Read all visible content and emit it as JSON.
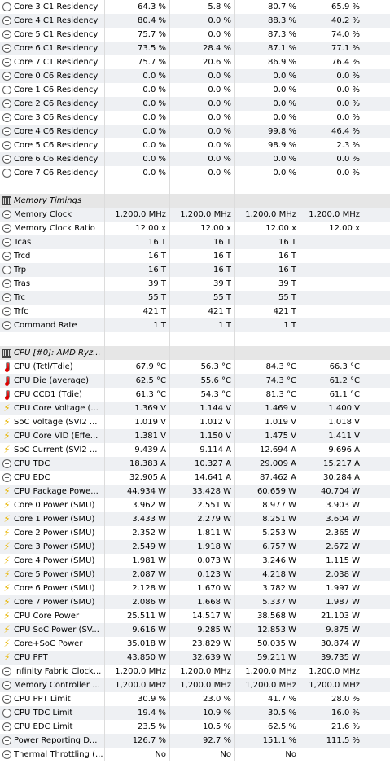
{
  "rows": [
    {
      "type": "data",
      "icon": "clock",
      "label": "Core 3 C1 Residency",
      "v": [
        "64.3 %",
        "5.8 %",
        "80.7 %",
        "65.9 %"
      ]
    },
    {
      "type": "data",
      "icon": "clock",
      "label": "Core 4 C1 Residency",
      "v": [
        "80.4 %",
        "0.0 %",
        "88.3 %",
        "40.2 %"
      ]
    },
    {
      "type": "data",
      "icon": "clock",
      "label": "Core 5 C1 Residency",
      "v": [
        "75.7 %",
        "0.0 %",
        "87.3 %",
        "74.0 %"
      ]
    },
    {
      "type": "data",
      "icon": "clock",
      "label": "Core 6 C1 Residency",
      "v": [
        "73.5 %",
        "28.4 %",
        "87.1 %",
        "77.1 %"
      ]
    },
    {
      "type": "data",
      "icon": "clock",
      "label": "Core 7 C1 Residency",
      "v": [
        "75.7 %",
        "20.6 %",
        "86.9 %",
        "76.4 %"
      ]
    },
    {
      "type": "data",
      "icon": "clock",
      "label": "Core 0 C6 Residency",
      "v": [
        "0.0 %",
        "0.0 %",
        "0.0 %",
        "0.0 %"
      ]
    },
    {
      "type": "data",
      "icon": "clock",
      "label": "Core 1 C6 Residency",
      "v": [
        "0.0 %",
        "0.0 %",
        "0.0 %",
        "0.0 %"
      ]
    },
    {
      "type": "data",
      "icon": "clock",
      "label": "Core 2 C6 Residency",
      "v": [
        "0.0 %",
        "0.0 %",
        "0.0 %",
        "0.0 %"
      ]
    },
    {
      "type": "data",
      "icon": "clock",
      "label": "Core 3 C6 Residency",
      "v": [
        "0.0 %",
        "0.0 %",
        "0.0 %",
        "0.0 %"
      ]
    },
    {
      "type": "data",
      "icon": "clock",
      "label": "Core 4 C6 Residency",
      "v": [
        "0.0 %",
        "0.0 %",
        "99.8 %",
        "46.4 %"
      ]
    },
    {
      "type": "data",
      "icon": "clock",
      "label": "Core 5 C6 Residency",
      "v": [
        "0.0 %",
        "0.0 %",
        "98.9 %",
        "2.3 %"
      ]
    },
    {
      "type": "data",
      "icon": "clock",
      "label": "Core 6 C6 Residency",
      "v": [
        "0.0 %",
        "0.0 %",
        "0.0 %",
        "0.0 %"
      ]
    },
    {
      "type": "data",
      "icon": "clock",
      "label": "Core 7 C6 Residency",
      "v": [
        "0.0 %",
        "0.0 %",
        "0.0 %",
        "0.0 %"
      ]
    },
    {
      "type": "blank"
    },
    {
      "type": "header",
      "icon": "chip",
      "label": "Memory Timings"
    },
    {
      "type": "data",
      "icon": "clock",
      "label": "Memory Clock",
      "v": [
        "1,200.0 MHz",
        "1,200.0 MHz",
        "1,200.0 MHz",
        "1,200.0 MHz"
      ]
    },
    {
      "type": "data",
      "icon": "clock",
      "label": "Memory Clock Ratio",
      "v": [
        "12.00 x",
        "12.00 x",
        "12.00 x",
        "12.00 x"
      ]
    },
    {
      "type": "data",
      "icon": "clock",
      "label": "Tcas",
      "v": [
        "16 T",
        "16 T",
        "16 T",
        ""
      ]
    },
    {
      "type": "data",
      "icon": "clock",
      "label": "Trcd",
      "v": [
        "16 T",
        "16 T",
        "16 T",
        ""
      ]
    },
    {
      "type": "data",
      "icon": "clock",
      "label": "Trp",
      "v": [
        "16 T",
        "16 T",
        "16 T",
        ""
      ]
    },
    {
      "type": "data",
      "icon": "clock",
      "label": "Tras",
      "v": [
        "39 T",
        "39 T",
        "39 T",
        ""
      ]
    },
    {
      "type": "data",
      "icon": "clock",
      "label": "Trc",
      "v": [
        "55 T",
        "55 T",
        "55 T",
        ""
      ]
    },
    {
      "type": "data",
      "icon": "clock",
      "label": "Trfc",
      "v": [
        "421 T",
        "421 T",
        "421 T",
        ""
      ]
    },
    {
      "type": "data",
      "icon": "clock",
      "label": "Command Rate",
      "v": [
        "1 T",
        "1 T",
        "1 T",
        ""
      ]
    },
    {
      "type": "blank"
    },
    {
      "type": "header",
      "icon": "chip",
      "label": "CPU [#0]: AMD Ryz..."
    },
    {
      "type": "data",
      "icon": "temp",
      "label": "CPU (Tctl/Tdie)",
      "v": [
        "67.9 °C",
        "56.3 °C",
        "84.3 °C",
        "66.3 °C"
      ]
    },
    {
      "type": "data",
      "icon": "temp",
      "label": "CPU Die (average)",
      "v": [
        "62.5 °C",
        "55.6 °C",
        "74.3 °C",
        "61.2 °C"
      ]
    },
    {
      "type": "data",
      "icon": "temp",
      "label": "CPU CCD1 (Tdie)",
      "v": [
        "61.3 °C",
        "54.3 °C",
        "81.3 °C",
        "61.1 °C"
      ]
    },
    {
      "type": "data",
      "icon": "bolt",
      "label": "CPU Core Voltage (...",
      "v": [
        "1.369 V",
        "1.144 V",
        "1.469 V",
        "1.400 V"
      ]
    },
    {
      "type": "data",
      "icon": "bolt",
      "label": "SoC Voltage (SVI2 ...",
      "v": [
        "1.019 V",
        "1.012 V",
        "1.019 V",
        "1.018 V"
      ]
    },
    {
      "type": "data",
      "icon": "bolt",
      "label": "CPU Core VID (Effe...",
      "v": [
        "1.381 V",
        "1.150 V",
        "1.475 V",
        "1.411 V"
      ]
    },
    {
      "type": "data",
      "icon": "bolt",
      "label": "SoC Current (SVI2 ...",
      "v": [
        "9.439 A",
        "9.114 A",
        "12.694 A",
        "9.696 A"
      ]
    },
    {
      "type": "data",
      "icon": "clock",
      "label": "CPU TDC",
      "v": [
        "18.383 A",
        "10.327 A",
        "29.009 A",
        "15.217 A"
      ]
    },
    {
      "type": "data",
      "icon": "clock",
      "label": "CPU EDC",
      "v": [
        "32.905 A",
        "14.641 A",
        "87.462 A",
        "30.284 A"
      ]
    },
    {
      "type": "data",
      "icon": "bolt",
      "label": "CPU Package Powe...",
      "v": [
        "44.934 W",
        "33.428 W",
        "60.659 W",
        "40.704 W"
      ]
    },
    {
      "type": "data",
      "icon": "bolt",
      "label": "Core 0 Power (SMU)",
      "v": [
        "3.962 W",
        "2.551 W",
        "8.977 W",
        "3.903 W"
      ]
    },
    {
      "type": "data",
      "icon": "bolt",
      "label": "Core 1 Power (SMU)",
      "v": [
        "3.433 W",
        "2.279 W",
        "8.251 W",
        "3.604 W"
      ]
    },
    {
      "type": "data",
      "icon": "bolt",
      "label": "Core 2 Power (SMU)",
      "v": [
        "2.352 W",
        "1.811 W",
        "5.253 W",
        "2.365 W"
      ]
    },
    {
      "type": "data",
      "icon": "bolt",
      "label": "Core 3 Power (SMU)",
      "v": [
        "2.549 W",
        "1.918 W",
        "6.757 W",
        "2.672 W"
      ]
    },
    {
      "type": "data",
      "icon": "bolt",
      "label": "Core 4 Power (SMU)",
      "v": [
        "1.981 W",
        "0.073 W",
        "3.246 W",
        "1.115 W"
      ]
    },
    {
      "type": "data",
      "icon": "bolt",
      "label": "Core 5 Power (SMU)",
      "v": [
        "2.087 W",
        "0.123 W",
        "4.218 W",
        "2.038 W"
      ]
    },
    {
      "type": "data",
      "icon": "bolt",
      "label": "Core 6 Power (SMU)",
      "v": [
        "2.128 W",
        "1.670 W",
        "3.782 W",
        "1.997 W"
      ]
    },
    {
      "type": "data",
      "icon": "bolt",
      "label": "Core 7 Power (SMU)",
      "v": [
        "2.086 W",
        "1.668 W",
        "5.337 W",
        "1.987 W"
      ]
    },
    {
      "type": "data",
      "icon": "bolt",
      "label": "CPU Core Power",
      "v": [
        "25.511 W",
        "14.517 W",
        "38.568 W",
        "21.103 W"
      ]
    },
    {
      "type": "data",
      "icon": "bolt",
      "label": "CPU SoC Power (SV...",
      "v": [
        "9.616 W",
        "9.285 W",
        "12.853 W",
        "9.875 W"
      ]
    },
    {
      "type": "data",
      "icon": "bolt",
      "label": "Core+SoC Power",
      "v": [
        "35.018 W",
        "23.829 W",
        "50.035 W",
        "30.874 W"
      ]
    },
    {
      "type": "data",
      "icon": "bolt",
      "label": "CPU PPT",
      "v": [
        "43.850 W",
        "32.639 W",
        "59.211 W",
        "39.735 W"
      ]
    },
    {
      "type": "data",
      "icon": "clock",
      "label": "Infinity Fabric Clock...",
      "v": [
        "1,200.0 MHz",
        "1,200.0 MHz",
        "1,200.0 MHz",
        "1,200.0 MHz"
      ]
    },
    {
      "type": "data",
      "icon": "clock",
      "label": "Memory Controller ...",
      "v": [
        "1,200.0 MHz",
        "1,200.0 MHz",
        "1,200.0 MHz",
        "1,200.0 MHz"
      ]
    },
    {
      "type": "data",
      "icon": "clock",
      "label": "CPU PPT Limit",
      "v": [
        "30.9 %",
        "23.0 %",
        "41.7 %",
        "28.0 %"
      ]
    },
    {
      "type": "data",
      "icon": "clock",
      "label": "CPU TDC Limit",
      "v": [
        "19.4 %",
        "10.9 %",
        "30.5 %",
        "16.0 %"
      ]
    },
    {
      "type": "data",
      "icon": "clock",
      "label": "CPU EDC Limit",
      "v": [
        "23.5 %",
        "10.5 %",
        "62.5 %",
        "21.6 %"
      ]
    },
    {
      "type": "data",
      "icon": "clock",
      "label": "Power Reporting D...",
      "v": [
        "126.7 %",
        "92.7 %",
        "151.1 %",
        "111.5 %"
      ]
    },
    {
      "type": "data",
      "icon": "clock",
      "label": "Thermal Throttling (...",
      "v": [
        "No",
        "No",
        "No",
        ""
      ]
    }
  ]
}
